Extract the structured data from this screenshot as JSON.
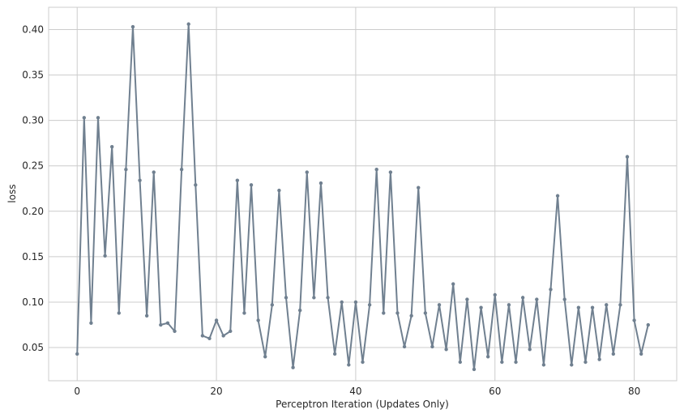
{
  "chart_data": {
    "type": "line",
    "title": "",
    "xlabel": "Perceptron Iteration (Updates Only)",
    "ylabel": "loss",
    "xlim": [
      -4.1,
      86.1
    ],
    "ylim": [
      0.0135,
      0.4245
    ],
    "xticks": [
      0,
      20,
      40,
      60,
      80
    ],
    "xtick_labels": [
      "0",
      "20",
      "40",
      "60",
      "80"
    ],
    "yticks": [
      0.05,
      0.1,
      0.15,
      0.2,
      0.25,
      0.3,
      0.35,
      0.4
    ],
    "ytick_labels": [
      "0.05",
      "0.10",
      "0.15",
      "0.20",
      "0.25",
      "0.30",
      "0.35",
      "0.40"
    ],
    "grid": true,
    "line_color": "#708090",
    "x": [
      0,
      1,
      2,
      3,
      4,
      5,
      6,
      7,
      8,
      9,
      10,
      11,
      12,
      13,
      14,
      15,
      16,
      17,
      18,
      19,
      20,
      21,
      22,
      23,
      24,
      25,
      26,
      27,
      28,
      29,
      30,
      31,
      32,
      33,
      34,
      35,
      36,
      37,
      38,
      39,
      40,
      41,
      42,
      43,
      44,
      45,
      46,
      47,
      48,
      49,
      50,
      51,
      52,
      53,
      54,
      55,
      56,
      57,
      58,
      59,
      60,
      61,
      62,
      63,
      64,
      65,
      66,
      67,
      68,
      69,
      70,
      71,
      72,
      73,
      74,
      75,
      76,
      77,
      78,
      79,
      80,
      81,
      82
    ],
    "series": [
      {
        "values": [
          0.043,
          0.303,
          0.077,
          0.303,
          0.151,
          0.271,
          0.088,
          0.246,
          0.403,
          0.234,
          0.085,
          0.243,
          0.075,
          0.077,
          0.068,
          0.246,
          0.406,
          0.229,
          0.063,
          0.06,
          0.08,
          0.063,
          0.068,
          0.234,
          0.088,
          0.229,
          0.08,
          0.04,
          0.097,
          0.223,
          0.105,
          0.028,
          0.091,
          0.243,
          0.105,
          0.231,
          0.105,
          0.043,
          0.1,
          0.031,
          0.1,
          0.034,
          0.097,
          0.246,
          0.088,
          0.243,
          0.088,
          0.051,
          0.085,
          0.226,
          0.088,
          0.051,
          0.097,
          0.048,
          0.12,
          0.034,
          0.103,
          0.026,
          0.094,
          0.04,
          0.108,
          0.034,
          0.097,
          0.034,
          0.105,
          0.048,
          0.103,
          0.031,
          0.114,
          0.217,
          0.103,
          0.031,
          0.094,
          0.034,
          0.094,
          0.037,
          0.097,
          0.043,
          0.097,
          0.26,
          0.08,
          0.043,
          0.075
        ]
      }
    ]
  }
}
